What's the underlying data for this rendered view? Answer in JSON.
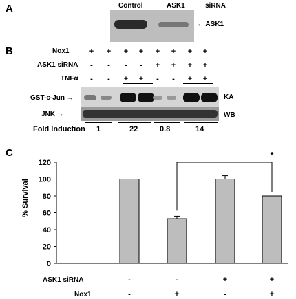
{
  "panelA": {
    "letter": "A",
    "col_control": "Control",
    "col_asik": "ASK1",
    "col_sirna": "siRNA",
    "band_label": "ASK1"
  },
  "panelB": {
    "letter": "B",
    "rows": [
      {
        "label": "Nox1",
        "signs": [
          "+",
          "+",
          "+",
          "+",
          "+",
          "+",
          "+",
          "+"
        ]
      },
      {
        "label": "ASK1 siRNA",
        "signs": [
          "-",
          "-",
          "-",
          "-",
          "+",
          "+",
          "+",
          "+"
        ]
      },
      {
        "label": "TNFα",
        "signs": [
          "-",
          "-",
          "+",
          "+",
          "-",
          "-",
          "+",
          "+"
        ]
      }
    ],
    "blot1_label": "GST-c-Jun",
    "blot1_side": "KA",
    "blot2_label": "JNK",
    "blot2_side": "WB",
    "fold_label": "Fold Induction",
    "fold_values": [
      "1",
      "22",
      "0.8",
      "14"
    ]
  },
  "panelC": {
    "letter": "C",
    "chart_data": {
      "type": "bar",
      "ylabel": "% Survival",
      "ylim": [
        0,
        120
      ],
      "yticks": [
        "0",
        "20",
        "40",
        "60",
        "80",
        "100",
        "120"
      ],
      "values": [
        100,
        53,
        100,
        80
      ],
      "errors": [
        0,
        3,
        4,
        0
      ],
      "significance": "*",
      "row_labels": [
        "ASK1 siRNA",
        "Nox1"
      ],
      "asik_signs": [
        "-",
        "-",
        "+",
        "+"
      ],
      "nox_signs": [
        "-",
        "+",
        "-",
        "+"
      ]
    }
  }
}
